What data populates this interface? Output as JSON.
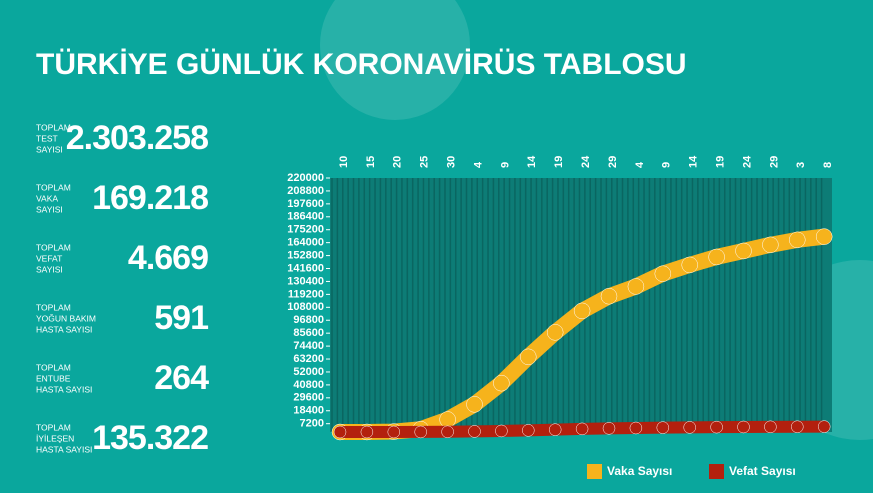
{
  "title": "TÜRKİYE GÜNLÜK KORONAVİRÜS TABLOSU",
  "stats": [
    {
      "label": [
        "TOPLAM",
        "TEST",
        "SAYISI"
      ],
      "value": "2.303.258"
    },
    {
      "label": [
        "TOPLAM",
        "VAKA",
        "SAYISI"
      ],
      "value": "169.218"
    },
    {
      "label": [
        "TOPLAM",
        "VEFAT",
        "SAYISI"
      ],
      "value": "4.669"
    },
    {
      "label": [
        "TOPLAM",
        "YOĞUN BAKIM",
        "HASTA SAYISI"
      ],
      "value": "591"
    },
    {
      "label": [
        "TOPLAM",
        "ENTUBE",
        "HASTA SAYISI"
      ],
      "value": "264"
    },
    {
      "label": [
        "TOPLAM",
        "İYİLEŞEN",
        "HASTA SAYISI"
      ],
      "value": "135.322"
    }
  ],
  "chart_data": {
    "type": "line",
    "categories": [
      "10",
      "15",
      "20",
      "25",
      "30",
      "4",
      "9",
      "14",
      "19",
      "24",
      "29",
      "4",
      "9",
      "14",
      "19",
      "24",
      "29",
      "3",
      "8"
    ],
    "series": [
      {
        "name": "Vaka Sayısı",
        "color": "#f6b31c",
        "values": [
          0,
          18,
          359,
          2433,
          10827,
          23934,
          42282,
          65111,
          86306,
          104912,
          117589,
          126045,
          137115,
          144749,
          151615,
          156827,
          162120,
          166422,
          169218
        ]
      },
      {
        "name": "Vefat Sayısı",
        "color": "#b3200e",
        "values": [
          0,
          0,
          9,
          59,
          168,
          501,
          908,
          1403,
          2017,
          2706,
          3174,
          3461,
          3786,
          3999,
          4199,
          4340,
          4489,
          4563,
          4669
        ]
      }
    ],
    "ylim": [
      0,
      220000
    ],
    "yticks": [
      7200,
      18400,
      29600,
      40800,
      52000,
      63200,
      74400,
      85600,
      96800,
      108000,
      119200,
      130400,
      141600,
      152800,
      164000,
      175200,
      186400,
      197600,
      208800,
      220000
    ]
  }
}
